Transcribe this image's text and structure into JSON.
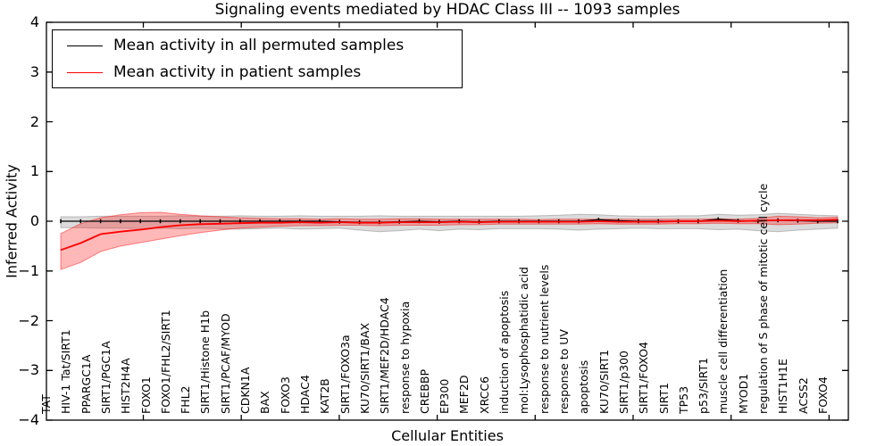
{
  "figure": {
    "title": "Signaling events mediated by HDAC Class III -- 1093 samples",
    "xlabel": "Cellular Entities",
    "ylabel": "Inferred Activity",
    "background": "#ffffff"
  },
  "legend": {
    "items": [
      {
        "label": "Mean activity in all permuted samples",
        "color": "#000000"
      },
      {
        "label": "Mean activity in patient samples",
        "color": "#ff0000"
      }
    ]
  },
  "chart_data": {
    "type": "line",
    "title": "Signaling events mediated by HDAC Class III -- 1093 samples",
    "xlabel": "Cellular Entities",
    "ylabel": "Inferred Activity",
    "ylim": [
      -4,
      4
    ],
    "yticks": [
      4,
      3,
      2,
      1,
      0,
      -1,
      -2,
      -3,
      -4
    ],
    "grid": false,
    "legend_position": "upper left",
    "categories": [
      "TAT",
      "HIV-1 Tat/SIRT1",
      "PPARGC1A",
      "SIRT1/PGC1A",
      "HIST2H4A",
      "FOXO1",
      "FOXO1/FHL2/SIRT1",
      "FHL2",
      "SIRT1/Histone H1b",
      "SIRT1/PCAF/MYOD",
      "CDKN1A",
      "BAX",
      "FOXO3",
      "HDAC4",
      "KAT2B",
      "SIRT1/FOXO3a",
      "KU70/SIRT1/BAX",
      "SIRT1/MEF2D/HDAC4",
      "response to hypoxia",
      "CREBBP",
      "EP300",
      "MEF2D",
      "XRCC6",
      "induction of apoptosis",
      "mol:Lysophosphatidic acid",
      "response to nutrient levels",
      "response to UV",
      "apoptosis",
      "KU70/SIRT1",
      "SIRT1/p300",
      "SIRT1/FOXO4",
      "SIRT1",
      "TP53",
      "p53/SIRT1",
      "muscle cell differentiation",
      "MYOD1",
      "regulation of S phase of mitotic cell cycle",
      "HIST1H1E",
      "ACSS2",
      "FOXO4"
    ],
    "series": [
      {
        "name": "Mean activity in all permuted samples",
        "color": "#000000",
        "band_fill": "rgba(125,125,125,0.28)",
        "band_edge": "rgba(125,125,125,0.45)",
        "values": [
          0,
          0,
          0,
          0,
          0,
          0,
          0,
          0,
          0,
          0,
          0,
          0,
          0,
          0,
          -0.01,
          -0.02,
          -0.02,
          -0.01,
          0,
          -0.01,
          0,
          -0.01,
          0,
          0,
          0,
          0,
          0,
          0.03,
          0.01,
          0,
          0,
          0,
          0,
          0.04,
          0.01,
          0,
          0.02,
          0.01,
          0,
          0
        ],
        "band_upper": [
          0.09,
          0.09,
          0.1,
          0.1,
          0.1,
          0.1,
          0.11,
          0.1,
          0.1,
          0.11,
          0.1,
          0.1,
          0.11,
          0.1,
          0.1,
          0.1,
          0.11,
          0.1,
          0.1,
          0.1,
          0.1,
          0.1,
          0.1,
          0.1,
          0.11,
          0.12,
          0.14,
          0.13,
          0.11,
          0.1,
          0.1,
          0.11,
          0.11,
          0.14,
          0.12,
          0.13,
          0.16,
          0.14,
          0.12,
          0.11
        ],
        "band_lower": [
          -0.13,
          -0.13,
          -0.14,
          -0.14,
          -0.15,
          -0.14,
          -0.15,
          -0.14,
          -0.15,
          -0.16,
          -0.15,
          -0.14,
          -0.16,
          -0.15,
          -0.14,
          -0.18,
          -0.21,
          -0.19,
          -0.16,
          -0.19,
          -0.16,
          -0.17,
          -0.15,
          -0.15,
          -0.15,
          -0.16,
          -0.18,
          -0.16,
          -0.15,
          -0.14,
          -0.15,
          -0.15,
          -0.15,
          -0.17,
          -0.16,
          -0.19,
          -0.21,
          -0.18,
          -0.16,
          -0.14
        ]
      },
      {
        "name": "Mean activity in patient samples",
        "color": "#ff0000",
        "band_fill": "rgba(255,0,0,0.28)",
        "band_edge": "rgba(255,0,0,0.45)",
        "values": [
          -0.58,
          -0.44,
          -0.26,
          -0.21,
          -0.17,
          -0.12,
          -0.08,
          -0.06,
          -0.05,
          -0.04,
          -0.03,
          -0.03,
          -0.02,
          -0.03,
          -0.02,
          -0.03,
          -0.03,
          -0.02,
          -0.02,
          -0.02,
          -0.01,
          -0.02,
          -0.01,
          -0.01,
          -0.01,
          -0.01,
          -0.01,
          0,
          -0.01,
          -0.01,
          -0.01,
          0,
          0,
          0.01,
          0,
          0.01,
          0.02,
          0.02,
          0.02,
          0.03
        ],
        "band_upper": [
          -0.25,
          -0.05,
          0.07,
          0.13,
          0.17,
          0.18,
          0.14,
          0.11,
          0.09,
          0.07,
          0.06,
          0.05,
          0.05,
          0.04,
          0.05,
          0.04,
          0.04,
          0.05,
          0.05,
          0.04,
          0.04,
          0.04,
          0.04,
          0.04,
          0.03,
          0.04,
          0.04,
          0.04,
          0.04,
          0.04,
          0.04,
          0.04,
          0.04,
          0.05,
          0.04,
          0.06,
          0.1,
          0.09,
          0.07,
          0.08
        ],
        "band_lower": [
          -0.97,
          -0.83,
          -0.61,
          -0.5,
          -0.43,
          -0.36,
          -0.29,
          -0.23,
          -0.18,
          -0.14,
          -0.12,
          -0.1,
          -0.09,
          -0.09,
          -0.08,
          -0.08,
          -0.09,
          -0.08,
          -0.08,
          -0.08,
          -0.07,
          -0.07,
          -0.06,
          -0.06,
          -0.06,
          -0.06,
          -0.06,
          -0.05,
          -0.06,
          -0.06,
          -0.06,
          -0.05,
          -0.05,
          -0.04,
          -0.05,
          -0.05,
          -0.07,
          -0.06,
          -0.04,
          -0.03
        ]
      }
    ]
  }
}
